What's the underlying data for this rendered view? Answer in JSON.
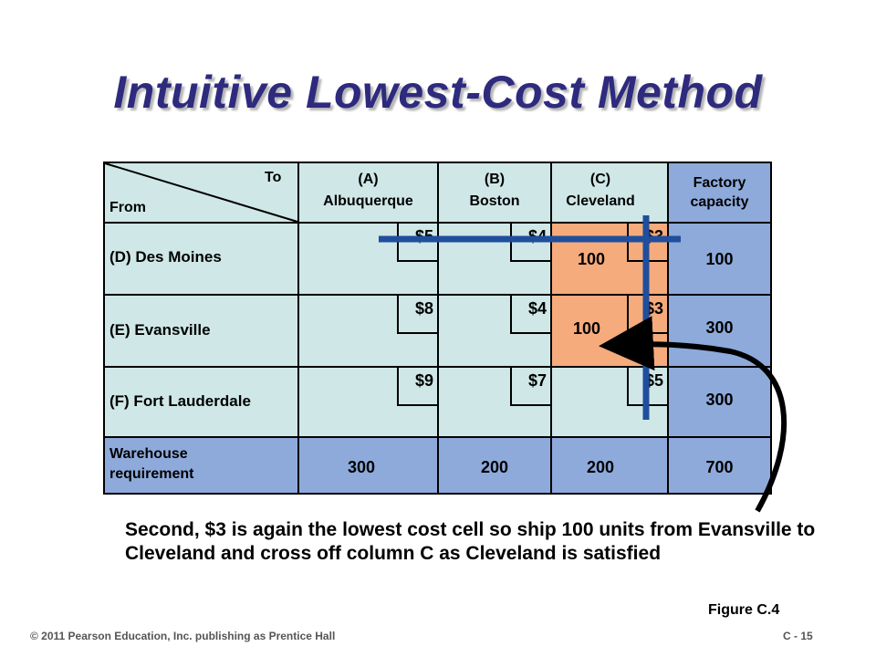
{
  "title": "Intuitive Lowest-Cost Method",
  "table": {
    "corner": {
      "to": "To",
      "from": "From"
    },
    "columns": [
      {
        "letter": "(A)",
        "name": "Albuquerque"
      },
      {
        "letter": "(B)",
        "name": "Boston"
      },
      {
        "letter": "(C)",
        "name": "Cleveland"
      }
    ],
    "capacity_header_1": "Factory",
    "capacity_header_2": "capacity",
    "rows": [
      {
        "label": "(D) Des Moines",
        "costs": [
          "$5",
          "$4",
          "$3"
        ],
        "alloc_c": "100",
        "capacity": "100"
      },
      {
        "label": "(E) Evansville",
        "costs": [
          "$8",
          "$4",
          "$3"
        ],
        "alloc_c": "100",
        "capacity": "300"
      },
      {
        "label": "(F) Fort Lauderdale",
        "costs": [
          "$9",
          "$7",
          "$5"
        ],
        "alloc_c": "",
        "capacity": "300"
      }
    ],
    "requirement_label_1": "Warehouse",
    "requirement_label_2": "requirement",
    "requirements": [
      "300",
      "200",
      "200"
    ],
    "total": "700"
  },
  "caption": "Second, $3 is again the lowest cost cell so ship 100 units from Evansville to Cleveland and cross off column C as Cleveland is satisfied",
  "figure_label": "Figure C.4",
  "footer": "© 2011 Pearson Education, Inc. publishing as Prentice Hall",
  "page_number": "C - 15",
  "colors": {
    "title": "#2e2a7e",
    "cell": "#cfe7e7",
    "header_blue": "#8eaadb",
    "highlight": "#f5ab7c",
    "crossout": "#1f4e9c"
  }
}
